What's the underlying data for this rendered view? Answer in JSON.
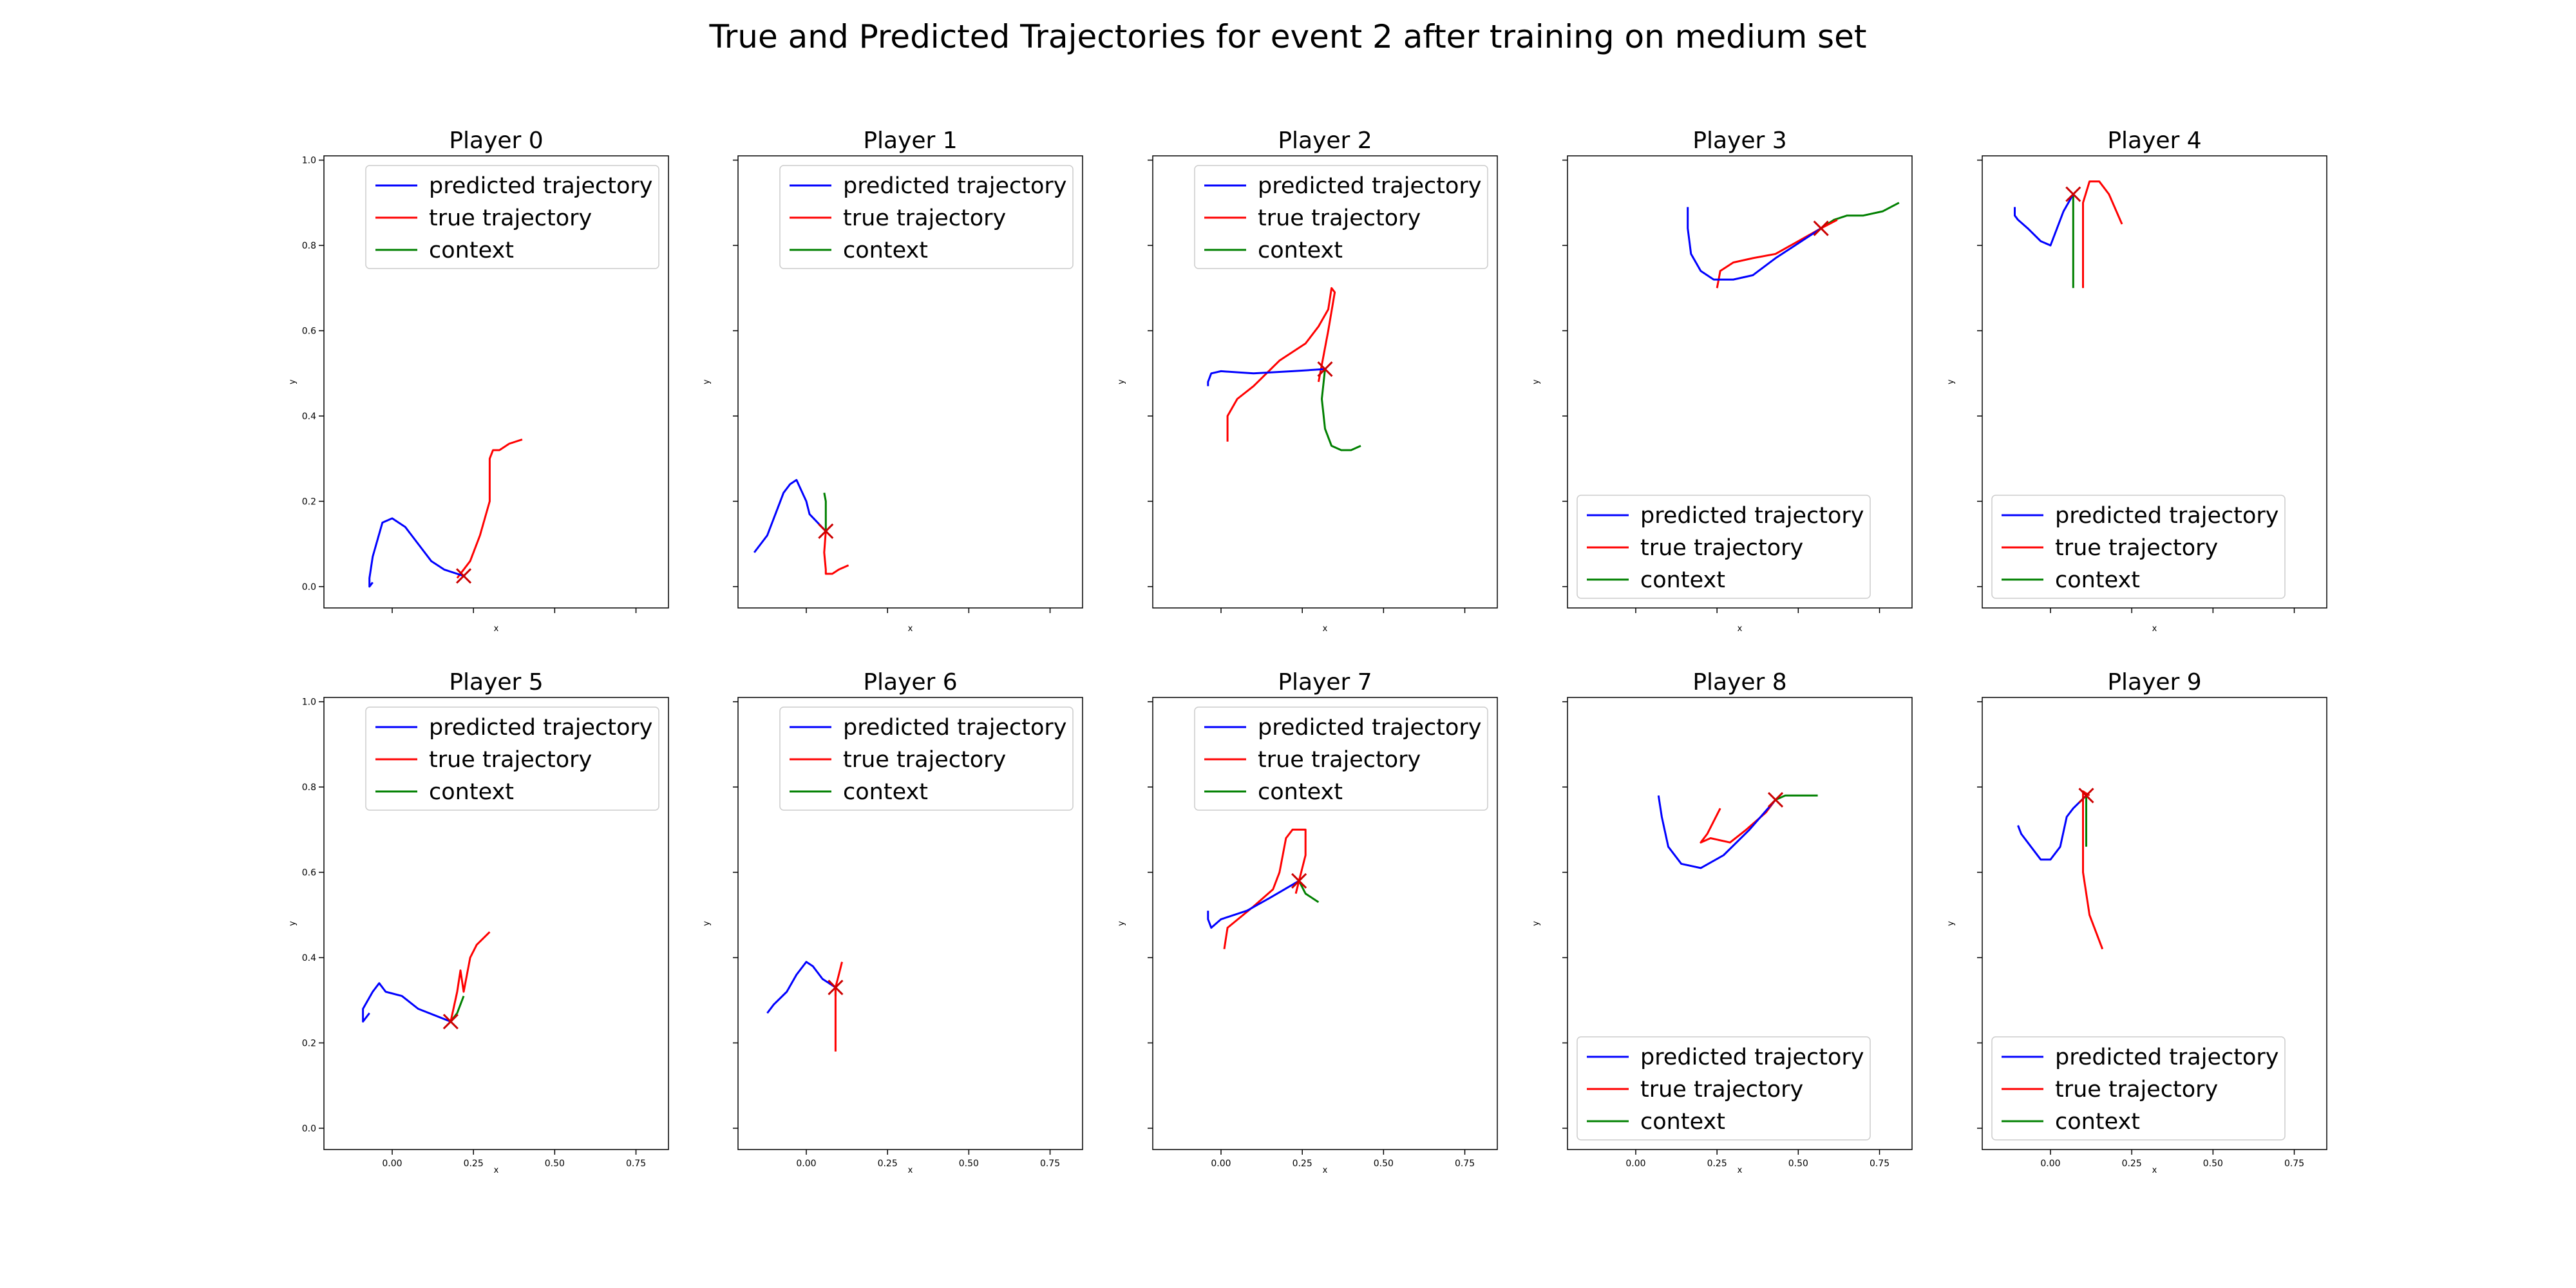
{
  "figure": {
    "title": "True and Predicted Trajectories for event 2 after training on medium set"
  },
  "colors": {
    "predicted": "#0000ff",
    "true": "#ff0000",
    "context": "#008000"
  },
  "chart_data": {
    "type": "line",
    "xlabel": "x",
    "ylabel": "y",
    "xlim": [
      -0.21,
      0.85
    ],
    "ylim": [
      -0.05,
      1.01
    ],
    "xticks": [
      "0.00",
      "0.25",
      "0.50",
      "0.75"
    ],
    "xtick_values": [
      0,
      0.25,
      0.5,
      0.75
    ],
    "yticks": [
      "0.0",
      "0.2",
      "0.4",
      "0.6",
      "0.8",
      "1.0"
    ],
    "ytick_values": [
      0,
      0.2,
      0.4,
      0.6,
      0.8,
      1.0
    ],
    "legend_labels": {
      "predicted": "predicted trajectory",
      "true": "true trajectory",
      "context": "context"
    },
    "panels": [
      {
        "title": "Player 0",
        "legend_loc": "upper right",
        "marker": [
          0.22,
          0.025
        ],
        "predicted": [
          [
            0.22,
            0.025
          ],
          [
            0.16,
            0.04
          ],
          [
            0.12,
            0.06
          ],
          [
            0.07,
            0.11
          ],
          [
            0.04,
            0.14
          ],
          [
            0.0,
            0.16
          ],
          [
            -0.03,
            0.15
          ],
          [
            -0.06,
            0.07
          ],
          [
            -0.07,
            0.02
          ],
          [
            -0.07,
            0.0
          ],
          [
            -0.06,
            0.01
          ]
        ],
        "true": [
          [
            0.2,
            0.02
          ],
          [
            0.24,
            0.06
          ],
          [
            0.27,
            0.12
          ],
          [
            0.3,
            0.2
          ],
          [
            0.3,
            0.3
          ],
          [
            0.31,
            0.32
          ],
          [
            0.33,
            0.32
          ],
          [
            0.36,
            0.335
          ],
          [
            0.4,
            0.345
          ]
        ],
        "context": []
      },
      {
        "title": "Player 1",
        "legend_loc": "upper right",
        "marker": [
          0.06,
          0.13
        ],
        "predicted": [
          [
            0.06,
            0.13
          ],
          [
            0.01,
            0.17
          ],
          [
            0.0,
            0.2
          ],
          [
            -0.03,
            0.25
          ],
          [
            -0.05,
            0.24
          ],
          [
            -0.07,
            0.22
          ],
          [
            -0.09,
            0.18
          ],
          [
            -0.12,
            0.12
          ],
          [
            -0.16,
            0.08
          ]
        ],
        "true": [
          [
            0.06,
            0.13
          ],
          [
            0.055,
            0.08
          ],
          [
            0.06,
            0.04
          ],
          [
            0.06,
            0.03
          ],
          [
            0.08,
            0.03
          ],
          [
            0.1,
            0.04
          ],
          [
            0.13,
            0.05
          ]
        ],
        "context": [
          [
            0.06,
            0.13
          ],
          [
            0.06,
            0.16
          ],
          [
            0.06,
            0.2
          ],
          [
            0.055,
            0.22
          ]
        ]
      },
      {
        "title": "Player 2",
        "legend_loc": "upper right",
        "marker": [
          0.32,
          0.51
        ],
        "predicted": [
          [
            0.32,
            0.51
          ],
          [
            0.22,
            0.505
          ],
          [
            0.1,
            0.5
          ],
          [
            0.0,
            0.505
          ],
          [
            -0.03,
            0.5
          ],
          [
            -0.04,
            0.48
          ],
          [
            -0.04,
            0.47
          ]
        ],
        "true": [
          [
            0.02,
            0.34
          ],
          [
            0.02,
            0.4
          ],
          [
            0.05,
            0.44
          ],
          [
            0.1,
            0.47
          ],
          [
            0.18,
            0.53
          ],
          [
            0.26,
            0.57
          ],
          [
            0.3,
            0.61
          ],
          [
            0.33,
            0.65
          ],
          [
            0.34,
            0.7
          ],
          [
            0.35,
            0.69
          ],
          [
            0.33,
            0.6
          ],
          [
            0.31,
            0.52
          ],
          [
            0.3,
            0.48
          ]
        ],
        "context": [
          [
            0.32,
            0.51
          ],
          [
            0.31,
            0.44
          ],
          [
            0.32,
            0.37
          ],
          [
            0.34,
            0.33
          ],
          [
            0.37,
            0.32
          ],
          [
            0.4,
            0.32
          ],
          [
            0.43,
            0.33
          ]
        ]
      },
      {
        "title": "Player 3",
        "legend_loc": "lower left",
        "marker": [
          0.57,
          0.84
        ],
        "predicted": [
          [
            0.57,
            0.84
          ],
          [
            0.49,
            0.8
          ],
          [
            0.43,
            0.77
          ],
          [
            0.36,
            0.73
          ],
          [
            0.3,
            0.72
          ],
          [
            0.24,
            0.72
          ],
          [
            0.2,
            0.74
          ],
          [
            0.17,
            0.78
          ],
          [
            0.16,
            0.84
          ],
          [
            0.16,
            0.89
          ]
        ],
        "true": [
          [
            0.25,
            0.7
          ],
          [
            0.26,
            0.74
          ],
          [
            0.3,
            0.76
          ],
          [
            0.36,
            0.77
          ],
          [
            0.43,
            0.78
          ],
          [
            0.5,
            0.81
          ],
          [
            0.57,
            0.84
          ],
          [
            0.62,
            0.86
          ]
        ],
        "context": [
          [
            0.57,
            0.84
          ],
          [
            0.61,
            0.86
          ],
          [
            0.65,
            0.87
          ],
          [
            0.7,
            0.87
          ],
          [
            0.76,
            0.88
          ],
          [
            0.81,
            0.9
          ]
        ]
      },
      {
        "title": "Player 4",
        "legend_loc": "lower left",
        "marker": [
          0.07,
          0.92
        ],
        "predicted": [
          [
            0.07,
            0.92
          ],
          [
            0.04,
            0.88
          ],
          [
            0.02,
            0.84
          ],
          [
            0.0,
            0.8
          ],
          [
            -0.03,
            0.81
          ],
          [
            -0.07,
            0.84
          ],
          [
            -0.1,
            0.86
          ],
          [
            -0.11,
            0.87
          ],
          [
            -0.11,
            0.89
          ]
        ],
        "true": [
          [
            0.1,
            0.7
          ],
          [
            0.1,
            0.8
          ],
          [
            0.1,
            0.9
          ],
          [
            0.12,
            0.95
          ],
          [
            0.15,
            0.95
          ],
          [
            0.18,
            0.92
          ],
          [
            0.22,
            0.85
          ]
        ],
        "context": [
          [
            0.07,
            0.92
          ],
          [
            0.07,
            0.86
          ],
          [
            0.07,
            0.78
          ],
          [
            0.07,
            0.7
          ]
        ]
      },
      {
        "title": "Player 5",
        "legend_loc": "upper right",
        "marker": [
          0.18,
          0.25
        ],
        "predicted": [
          [
            0.18,
            0.25
          ],
          [
            0.08,
            0.28
          ],
          [
            0.03,
            0.31
          ],
          [
            -0.02,
            0.32
          ],
          [
            -0.04,
            0.34
          ],
          [
            -0.06,
            0.32
          ],
          [
            -0.09,
            0.28
          ],
          [
            -0.09,
            0.25
          ],
          [
            -0.07,
            0.27
          ]
        ],
        "true": [
          [
            0.18,
            0.25
          ],
          [
            0.2,
            0.32
          ],
          [
            0.21,
            0.37
          ],
          [
            0.22,
            0.32
          ],
          [
            0.24,
            0.4
          ],
          [
            0.26,
            0.43
          ],
          [
            0.3,
            0.46
          ]
        ],
        "context": [
          [
            0.18,
            0.25
          ],
          [
            0.2,
            0.27
          ],
          [
            0.22,
            0.31
          ]
        ]
      },
      {
        "title": "Player 6",
        "legend_loc": "upper right",
        "marker": [
          0.09,
          0.33
        ],
        "predicted": [
          [
            0.09,
            0.33
          ],
          [
            0.05,
            0.35
          ],
          [
            0.02,
            0.38
          ],
          [
            0.0,
            0.39
          ],
          [
            -0.03,
            0.36
          ],
          [
            -0.06,
            0.32
          ],
          [
            -0.1,
            0.29
          ],
          [
            -0.12,
            0.27
          ]
        ],
        "true": [
          [
            0.09,
            0.18
          ],
          [
            0.09,
            0.25
          ],
          [
            0.09,
            0.33
          ],
          [
            0.1,
            0.36
          ],
          [
            0.11,
            0.39
          ]
        ],
        "context": [
          [
            0.09,
            0.33
          ],
          [
            0.09,
            0.31
          ]
        ]
      },
      {
        "title": "Player 7",
        "legend_loc": "upper right",
        "marker": [
          0.24,
          0.58
        ],
        "predicted": [
          [
            0.24,
            0.58
          ],
          [
            0.15,
            0.54
          ],
          [
            0.08,
            0.51
          ],
          [
            0.0,
            0.49
          ],
          [
            -0.03,
            0.47
          ],
          [
            -0.04,
            0.49
          ],
          [
            -0.04,
            0.51
          ]
        ],
        "true": [
          [
            0.01,
            0.42
          ],
          [
            0.02,
            0.47
          ],
          [
            0.1,
            0.52
          ],
          [
            0.16,
            0.56
          ],
          [
            0.18,
            0.6
          ],
          [
            0.2,
            0.68
          ],
          [
            0.22,
            0.7
          ],
          [
            0.26,
            0.7
          ],
          [
            0.26,
            0.64
          ],
          [
            0.24,
            0.58
          ],
          [
            0.23,
            0.55
          ]
        ],
        "context": [
          [
            0.24,
            0.58
          ],
          [
            0.26,
            0.55
          ],
          [
            0.3,
            0.53
          ]
        ]
      },
      {
        "title": "Player 8",
        "legend_loc": "lower left",
        "marker": [
          0.43,
          0.77
        ],
        "predicted": [
          [
            0.43,
            0.77
          ],
          [
            0.35,
            0.7
          ],
          [
            0.27,
            0.64
          ],
          [
            0.2,
            0.61
          ],
          [
            0.14,
            0.62
          ],
          [
            0.1,
            0.66
          ],
          [
            0.08,
            0.73
          ],
          [
            0.07,
            0.78
          ]
        ],
        "true": [
          [
            0.26,
            0.75
          ],
          [
            0.22,
            0.69
          ],
          [
            0.2,
            0.67
          ],
          [
            0.23,
            0.68
          ],
          [
            0.29,
            0.67
          ],
          [
            0.34,
            0.7
          ],
          [
            0.4,
            0.74
          ],
          [
            0.43,
            0.77
          ]
        ],
        "context": [
          [
            0.43,
            0.77
          ],
          [
            0.46,
            0.78
          ],
          [
            0.52,
            0.78
          ],
          [
            0.56,
            0.78
          ]
        ]
      },
      {
        "title": "Player 9",
        "legend_loc": "lower left",
        "marker": [
          0.11,
          0.78
        ],
        "predicted": [
          [
            0.11,
            0.78
          ],
          [
            0.07,
            0.75
          ],
          [
            0.05,
            0.73
          ],
          [
            0.03,
            0.66
          ],
          [
            0.0,
            0.63
          ],
          [
            -0.03,
            0.63
          ],
          [
            -0.06,
            0.66
          ],
          [
            -0.09,
            0.69
          ],
          [
            -0.1,
            0.71
          ]
        ],
        "true": [
          [
            0.16,
            0.42
          ],
          [
            0.12,
            0.5
          ],
          [
            0.1,
            0.6
          ],
          [
            0.1,
            0.7
          ],
          [
            0.1,
            0.75
          ],
          [
            0.1,
            0.79
          ],
          [
            0.12,
            0.78
          ]
        ],
        "context": [
          [
            0.11,
            0.78
          ],
          [
            0.11,
            0.72
          ],
          [
            0.11,
            0.66
          ]
        ]
      }
    ]
  }
}
